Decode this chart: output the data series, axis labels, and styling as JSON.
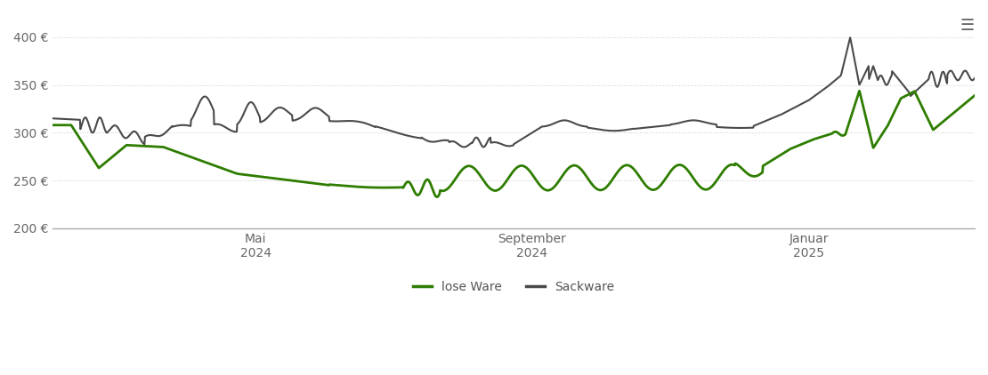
{
  "ylim": [
    200,
    410
  ],
  "yticks": [
    200,
    250,
    300,
    350,
    400
  ],
  "ytick_labels": [
    "200 €",
    "250 €",
    "300 €",
    "350 €",
    "400 €"
  ],
  "xtick_labels": [
    "Mai\n2024",
    "September\n2024",
    "Januar\n2025"
  ],
  "xtick_positions": [
    0.22,
    0.52,
    0.82
  ],
  "lose_ware_color": "#2e7d00",
  "sackware_color": "#4a4a4a",
  "background_color": "#ffffff",
  "grid_color": "#cccccc",
  "legend_labels": [
    "lose Ware",
    "Sackware"
  ],
  "legend_colors": [
    "#2e7d00",
    "#4a4a4a"
  ]
}
